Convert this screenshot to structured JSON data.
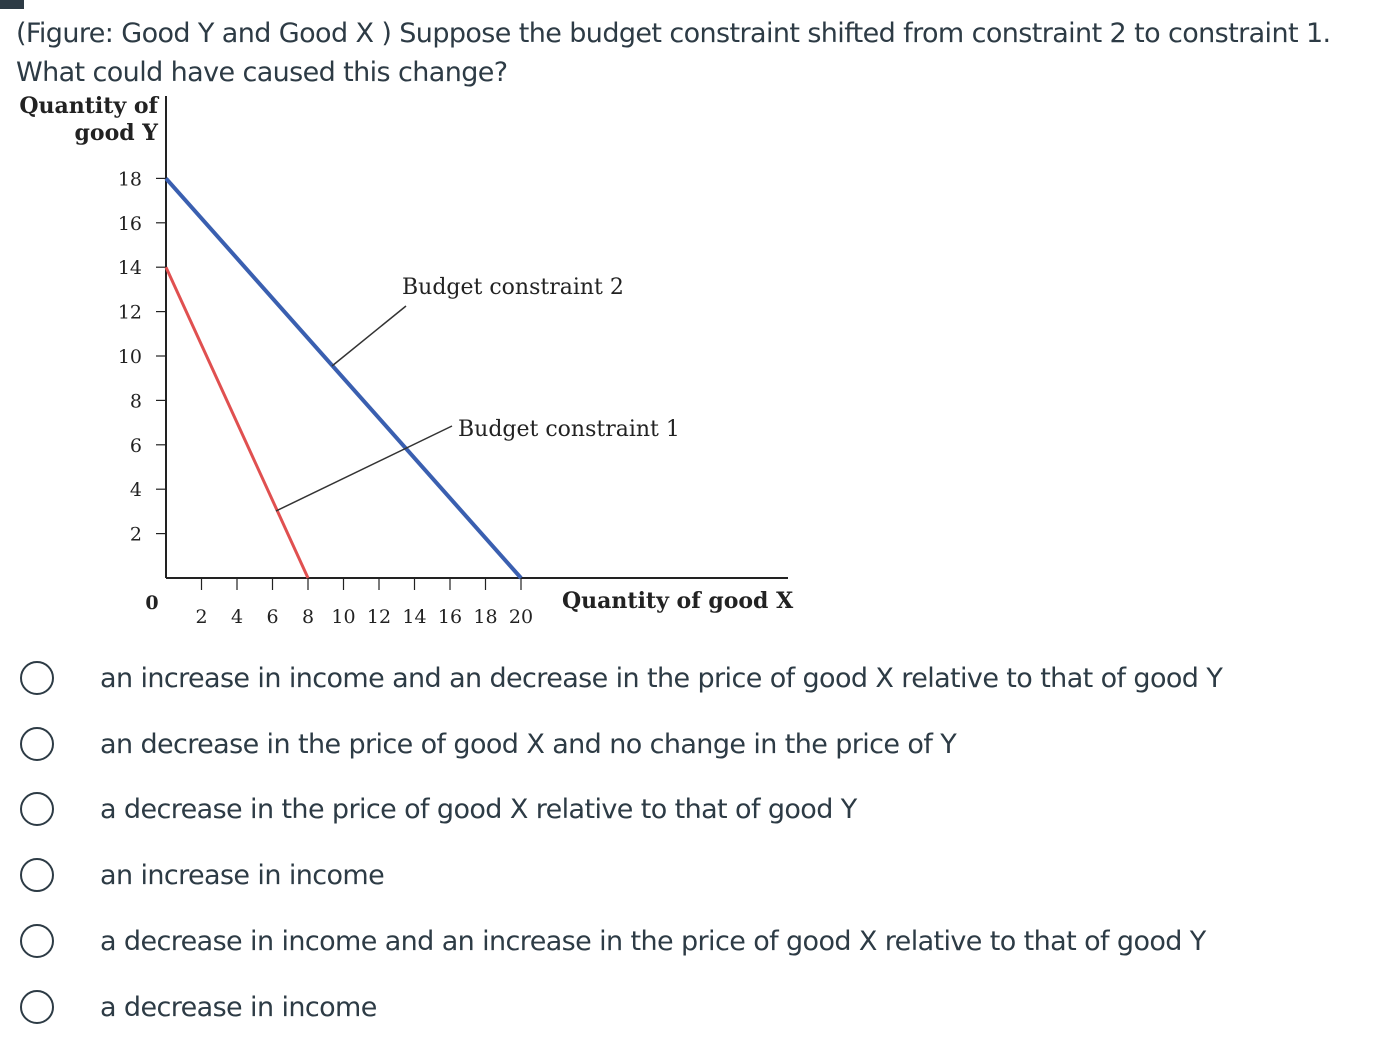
{
  "question": {
    "text": "(Figure: Good Y and Good X ) Suppose the budget constraint shifted from constraint 2 to constraint 1. What could have caused this change?"
  },
  "figure": {
    "y_axis_label_line1": "Quantity of",
    "y_axis_label_line2": "good Y",
    "x_axis_label": "Quantity of good X",
    "origin_label": "0",
    "budget_constraint_2_label": "Budget constraint 2",
    "budget_constraint_1_label": "Budget constraint 1",
    "y_ticks": [
      "18",
      "16",
      "14",
      "12",
      "10",
      "8",
      "6",
      "4",
      "2"
    ],
    "x_ticks": [
      "2",
      "4",
      "6",
      "8",
      "10",
      "12",
      "14",
      "16",
      "18",
      "20"
    ],
    "colors": {
      "budget_constraint_2": "#3a5fb0",
      "budget_constraint_1": "#e05050",
      "axis": "#222222"
    },
    "constraint_2": {
      "y_intercept": 18,
      "x_intercept": 20
    },
    "constraint_1": {
      "y_intercept": 14,
      "x_intercept": 8
    }
  },
  "options": [
    {
      "label": "an increase in income and an decrease in the price of good X relative to that of good Y",
      "selected": false
    },
    {
      "label": "an decrease in the price of good X and no change in the price of Y",
      "selected": false
    },
    {
      "label": "a decrease in the price of good X relative to that of good Y",
      "selected": false
    },
    {
      "label": "an increase in income",
      "selected": false
    },
    {
      "label": "a decrease in income and an increase in the price of good X relative to that of good Y",
      "selected": false
    },
    {
      "label": "a decrease in income",
      "selected": false
    }
  ]
}
